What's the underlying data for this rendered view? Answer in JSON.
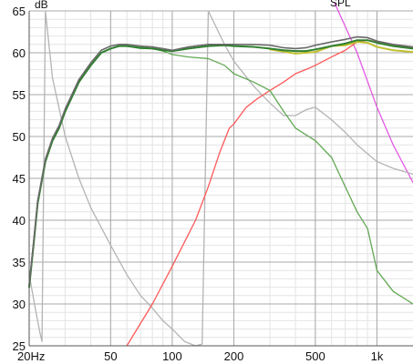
{
  "chart_data": {
    "type": "line",
    "title": "",
    "ylabel": "dB",
    "series_label": "SPL",
    "x_scale": "log",
    "xlim": [
      20,
      1500
    ],
    "ylim": [
      25,
      65
    ],
    "grid": true,
    "y_ticks": [
      {
        "value": 25,
        "label": "25"
      },
      {
        "value": 30,
        "label": "30"
      },
      {
        "value": 35,
        "label": "35"
      },
      {
        "value": 40,
        "label": "40"
      },
      {
        "value": 45,
        "label": "45"
      },
      {
        "value": 50,
        "label": "50"
      },
      {
        "value": 55,
        "label": "55"
      },
      {
        "value": 60,
        "label": "60"
      },
      {
        "value": 65,
        "label": "65"
      }
    ],
    "x_ticks": [
      {
        "value": 20,
        "label": "20Hz"
      },
      {
        "value": 50,
        "label": "50"
      },
      {
        "value": 100,
        "label": "100"
      },
      {
        "value": 200,
        "label": "200"
      },
      {
        "value": 500,
        "label": "500"
      },
      {
        "value": 1000,
        "label": "1k"
      }
    ],
    "series": [
      {
        "color": "#e35ae3",
        "width": 1.3,
        "x": [
          620,
          800,
          1000,
          1200,
          1500
        ],
        "y": [
          66,
          60,
          53.5,
          49,
          44.5
        ]
      },
      {
        "color": "#b4b4b4",
        "width": 1.3,
        "x": [
          20,
          21.6,
          22.6,
          23.1,
          24,
          26,
          30,
          35,
          40,
          50,
          60,
          70,
          80,
          90,
          100,
          115,
          130,
          140,
          150,
          180,
          200,
          250,
          300,
          350,
          400,
          450,
          500,
          600,
          700,
          800,
          1000,
          1200,
          1500
        ],
        "y": [
          33.5,
          29,
          26.5,
          25.5,
          65,
          57,
          50,
          45,
          41.5,
          37,
          33.5,
          31,
          29.5,
          28,
          27,
          25.5,
          25,
          25.2,
          65,
          61,
          59,
          56,
          54,
          52.5,
          52.5,
          53.2,
          53.5,
          52,
          50.5,
          49,
          47,
          46.2,
          45.5
        ]
      },
      {
        "color": "#ff5858",
        "width": 1.3,
        "x": [
          60,
          80,
          100,
          130,
          150,
          170,
          190,
          200,
          230,
          260,
          300,
          350,
          400,
          450,
          500,
          600,
          700,
          800,
          900,
          1000,
          1200,
          1500
        ],
        "y": [
          25,
          30,
          34.5,
          40,
          44,
          48,
          51,
          51.5,
          53.5,
          54.5,
          55.5,
          56.5,
          57.5,
          58,
          58.5,
          59.5,
          60.3,
          61.3,
          61.5,
          61.3,
          61,
          60.6
        ]
      },
      {
        "color": "#62a854",
        "width": 1.3,
        "x": [
          20,
          21,
          22,
          24,
          26,
          28,
          30,
          35,
          40,
          45,
          50,
          55,
          60,
          70,
          80,
          90,
          100,
          120,
          150,
          180,
          200,
          250,
          300,
          350,
          400,
          500,
          600,
          700,
          800,
          900,
          1000,
          1200,
          1500
        ],
        "y": [
          32,
          37,
          42,
          47,
          49.5,
          51,
          53,
          56.5,
          58.5,
          60,
          60.5,
          60.8,
          60.8,
          60.5,
          60.5,
          60.2,
          59.8,
          59.5,
          59.3,
          58.5,
          57.5,
          56.5,
          55.5,
          53,
          51,
          49.5,
          47.5,
          44,
          41,
          39,
          34,
          31.5,
          30
        ]
      },
      {
        "color": "#c0c030",
        "width": 2.0,
        "x": [
          300,
          400,
          500,
          600,
          700,
          800,
          900,
          1000,
          1200,
          1500
        ],
        "y": [
          60.4,
          59.9,
          60.1,
          60.8,
          60.9,
          61.3,
          61.2,
          60.7,
          60.3,
          60.1
        ]
      },
      {
        "color": "#2f7f2f",
        "width": 2.0,
        "x": [
          20,
          21,
          22,
          24,
          26,
          28,
          30,
          35,
          40,
          45,
          50,
          55,
          60,
          70,
          80,
          90,
          100,
          120,
          150,
          180,
          200,
          250,
          300,
          350,
          400,
          450,
          500,
          600,
          700,
          800,
          900,
          1000,
          1200,
          1500
        ],
        "y": [
          32,
          37,
          42,
          47,
          49.5,
          51,
          53,
          56.5,
          58.5,
          60,
          60.5,
          60.8,
          60.8,
          60.6,
          60.5,
          60.3,
          60.2,
          60.5,
          60.8,
          60.9,
          60.8,
          60.7,
          60.5,
          60.3,
          60.2,
          60.2,
          60.4,
          60.8,
          61.1,
          61.5,
          61.5,
          61.2,
          60.8,
          60.5
        ]
      },
      {
        "color": "#6a6a6a",
        "width": 1.6,
        "x": [
          20,
          21,
          22,
          24,
          26,
          28,
          30,
          35,
          40,
          45,
          50,
          55,
          60,
          70,
          80,
          90,
          100,
          120,
          150,
          180,
          200,
          250,
          300,
          350,
          400,
          450,
          500,
          600,
          700,
          800,
          900,
          1000,
          1200,
          1500
        ],
        "y": [
          32.3,
          37.3,
          42.3,
          47.3,
          49.8,
          51.3,
          53.3,
          56.8,
          58.8,
          60.3,
          60.8,
          61,
          61,
          60.8,
          60.7,
          60.5,
          60.3,
          60.7,
          61,
          61,
          61,
          61,
          60.9,
          60.6,
          60.5,
          60.6,
          60.9,
          61.3,
          61.6,
          61.9,
          61.8,
          61.4,
          61,
          60.7
        ]
      }
    ]
  }
}
